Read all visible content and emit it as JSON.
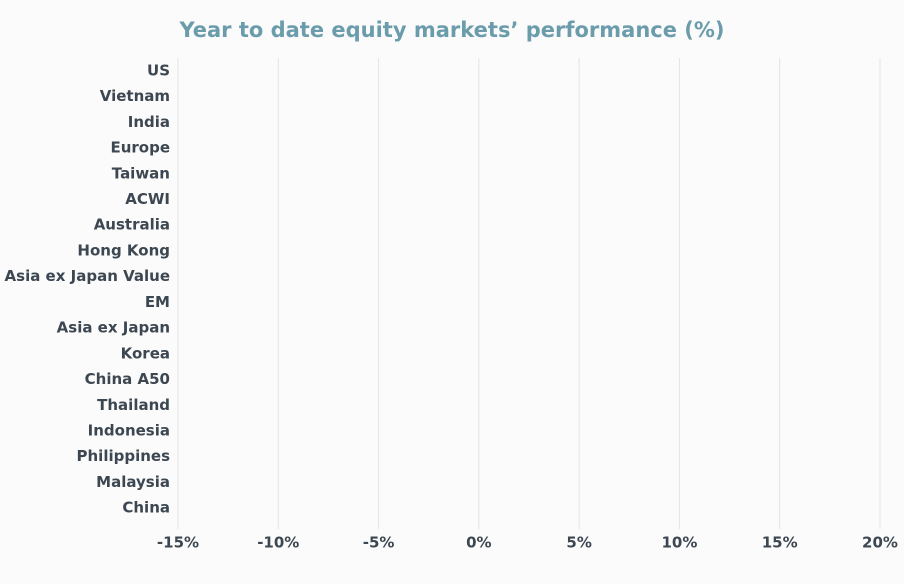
{
  "chart_data": {
    "type": "bar",
    "orientation": "horizontal",
    "title": "Year to date equity markets’ performance (%)",
    "categories": [
      "US",
      "Vietnam",
      "India",
      "Europe",
      "Taiwan",
      "ACWI",
      "Australia",
      "Hong Kong",
      "Asia ex Japan Value",
      "EM",
      "Asia ex Japan",
      "Korea",
      "China A50",
      "Thailand",
      "Indonesia",
      "Philippines",
      "Malaysia",
      "China"
    ],
    "xlim": [
      -15,
      20
    ],
    "xticks": [
      {
        "value": -15,
        "label": "-15%"
      },
      {
        "value": -10,
        "label": "-10%"
      },
      {
        "value": -5,
        "label": "-5%"
      },
      {
        "value": 0,
        "label": "0%"
      },
      {
        "value": 5,
        "label": "5%"
      },
      {
        "value": 10,
        "label": "10%"
      },
      {
        "value": 15,
        "label": "15%"
      },
      {
        "value": 20,
        "label": "20%"
      }
    ],
    "grid": true
  }
}
